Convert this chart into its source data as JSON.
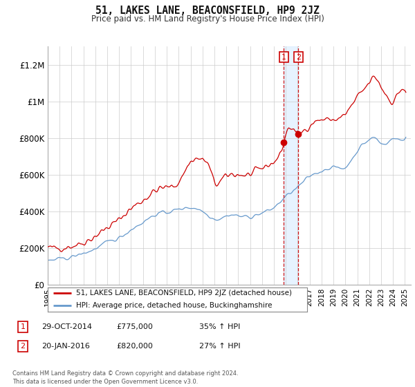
{
  "title": "51, LAKES LANE, BEACONSFIELD, HP9 2JZ",
  "subtitle": "Price paid vs. HM Land Registry's House Price Index (HPI)",
  "legend_line1": "51, LAKES LANE, BEACONSFIELD, HP9 2JZ (detached house)",
  "legend_line2": "HPI: Average price, detached house, Buckinghamshire",
  "table_rows": [
    {
      "num": "1",
      "date": "29-OCT-2014",
      "price": "£775,000",
      "hpi": "35% ↑ HPI"
    },
    {
      "num": "2",
      "date": "20-JAN-2016",
      "price": "£820,000",
      "hpi": "27% ↑ HPI"
    }
  ],
  "footnote": "Contains HM Land Registry data © Crown copyright and database right 2024.\nThis data is licensed under the Open Government Licence v3.0.",
  "sale1_year": 2014.83,
  "sale1_price": 775000,
  "sale2_year": 2016.05,
  "sale2_price": 820000,
  "red_color": "#cc0000",
  "blue_color": "#6699cc",
  "shade_color": "#ddeeff",
  "ylim_min": 0,
  "ylim_max": 1300000,
  "yticks": [
    0,
    200000,
    400000,
    600000,
    800000,
    1000000,
    1200000
  ],
  "ytick_labels": [
    "£0",
    "£200K",
    "£400K",
    "£600K",
    "£800K",
    "£1M",
    "£1.2M"
  ],
  "background_color": "#ffffff",
  "grid_color": "#cccccc",
  "xlim_min": 1995,
  "xlim_max": 2025.5
}
